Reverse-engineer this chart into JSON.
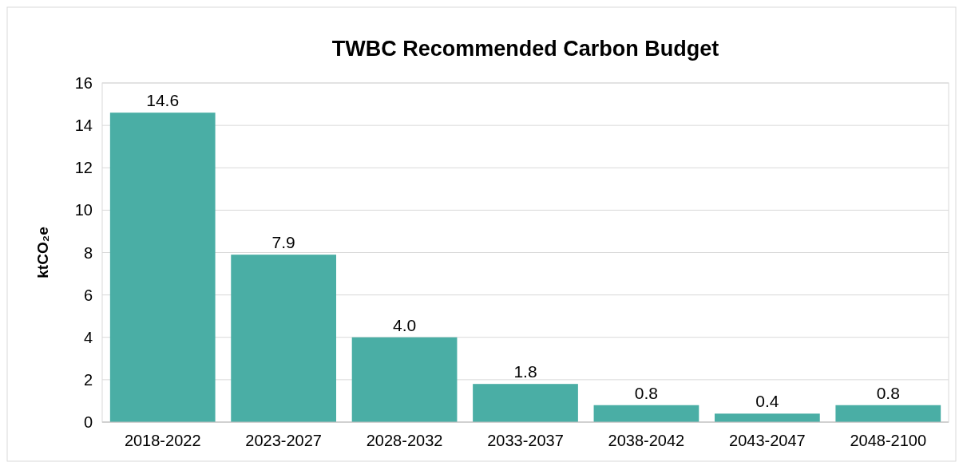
{
  "chart_data": {
    "type": "bar",
    "title": "TWBC Recommended Carbon Budget",
    "ylabel": "ktCO₂e",
    "categories": [
      "2018-2022",
      "2023-2027",
      "2028-2032",
      "2033-2037",
      "2038-2042",
      "2043-2047",
      "2048-2100"
    ],
    "values": [
      14.6,
      7.9,
      4.0,
      1.8,
      0.8,
      0.4,
      0.8
    ],
    "value_labels": [
      "14.6",
      "7.9",
      "4.0",
      "1.8",
      "0.8",
      "0.4",
      "0.8"
    ],
    "color": "#4aaea5",
    "ylim": [
      0,
      16
    ],
    "yticks": [
      0,
      2,
      4,
      6,
      8,
      10,
      12,
      14,
      16
    ],
    "grid": "y"
  }
}
